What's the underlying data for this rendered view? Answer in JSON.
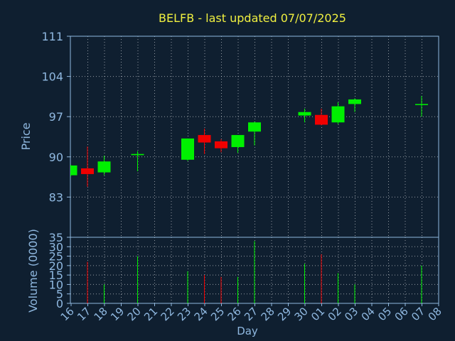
{
  "chart_data": {
    "type": "candlestick",
    "title": "BELFB - last updated 07/07/2025",
    "xlabel": "Day",
    "price_ylabel": "Price",
    "volume_ylabel": "Volume (0000)",
    "price_ylim": [
      76,
      111
    ],
    "price_ticks": [
      "111",
      "104",
      "97",
      "90",
      "83"
    ],
    "volume_ylim": [
      0,
      35
    ],
    "volume_ticks": [
      "35",
      "30",
      "25",
      "20",
      "15",
      "10",
      "5",
      "0"
    ],
    "grid": true,
    "x_labels": [
      "16",
      "17",
      "18",
      "19",
      "20",
      "21",
      "22",
      "23",
      "24",
      "25",
      "26",
      "27",
      "28",
      "29",
      "30",
      "01",
      "02",
      "03",
      "04",
      "05",
      "06",
      "07",
      "08"
    ],
    "candles": [
      {
        "x": "16",
        "open": 86.8,
        "high": 88.6,
        "low": 86.6,
        "close": 88.5,
        "volume": 0
      },
      {
        "x": "17",
        "open": 88.0,
        "high": 91.8,
        "low": 84.8,
        "close": 87.0,
        "volume": 22
      },
      {
        "x": "18",
        "open": 87.3,
        "high": 90.2,
        "low": 86.8,
        "close": 89.2,
        "volume": 10
      },
      {
        "x": "20",
        "open": 90.3,
        "high": 91.0,
        "low": 87.5,
        "close": 90.5,
        "volume": 25
      },
      {
        "x": "23",
        "open": 89.5,
        "high": 93.2,
        "low": 89.3,
        "close": 93.2,
        "volume": 17
      },
      {
        "x": "24",
        "open": 93.8,
        "high": 94.9,
        "low": 90.5,
        "close": 92.5,
        "volume": 15
      },
      {
        "x": "25",
        "open": 92.7,
        "high": 93.1,
        "low": 90.8,
        "close": 91.5,
        "volume": 14
      },
      {
        "x": "26",
        "open": 91.7,
        "high": 93.8,
        "low": 90.7,
        "close": 93.8,
        "volume": 14
      },
      {
        "x": "27",
        "open": 94.4,
        "high": 96.1,
        "low": 92.0,
        "close": 96.0,
        "volume": 33
      },
      {
        "x": "30",
        "open": 97.2,
        "high": 98.4,
        "low": 96.0,
        "close": 97.8,
        "volume": 21
      },
      {
        "x": "01",
        "open": 97.3,
        "high": 98.4,
        "low": 95.5,
        "close": 95.6,
        "volume": 26
      },
      {
        "x": "02",
        "open": 96.0,
        "high": 99.5,
        "low": 95.7,
        "close": 98.8,
        "volume": 16
      },
      {
        "x": "03",
        "open": 99.2,
        "high": 100.2,
        "low": 97.8,
        "close": 100.0,
        "volume": 10
      },
      {
        "x": "07",
        "open": 99.1,
        "high": 100.6,
        "low": 97.0,
        "close": 99.2,
        "volume": 20
      }
    ],
    "colors": {
      "background": "#0f1f30",
      "axis": "#8fb8e0",
      "grid": "#ffffff",
      "title": "#f0f040",
      "up": "#00f000",
      "down": "#f00000"
    }
  }
}
